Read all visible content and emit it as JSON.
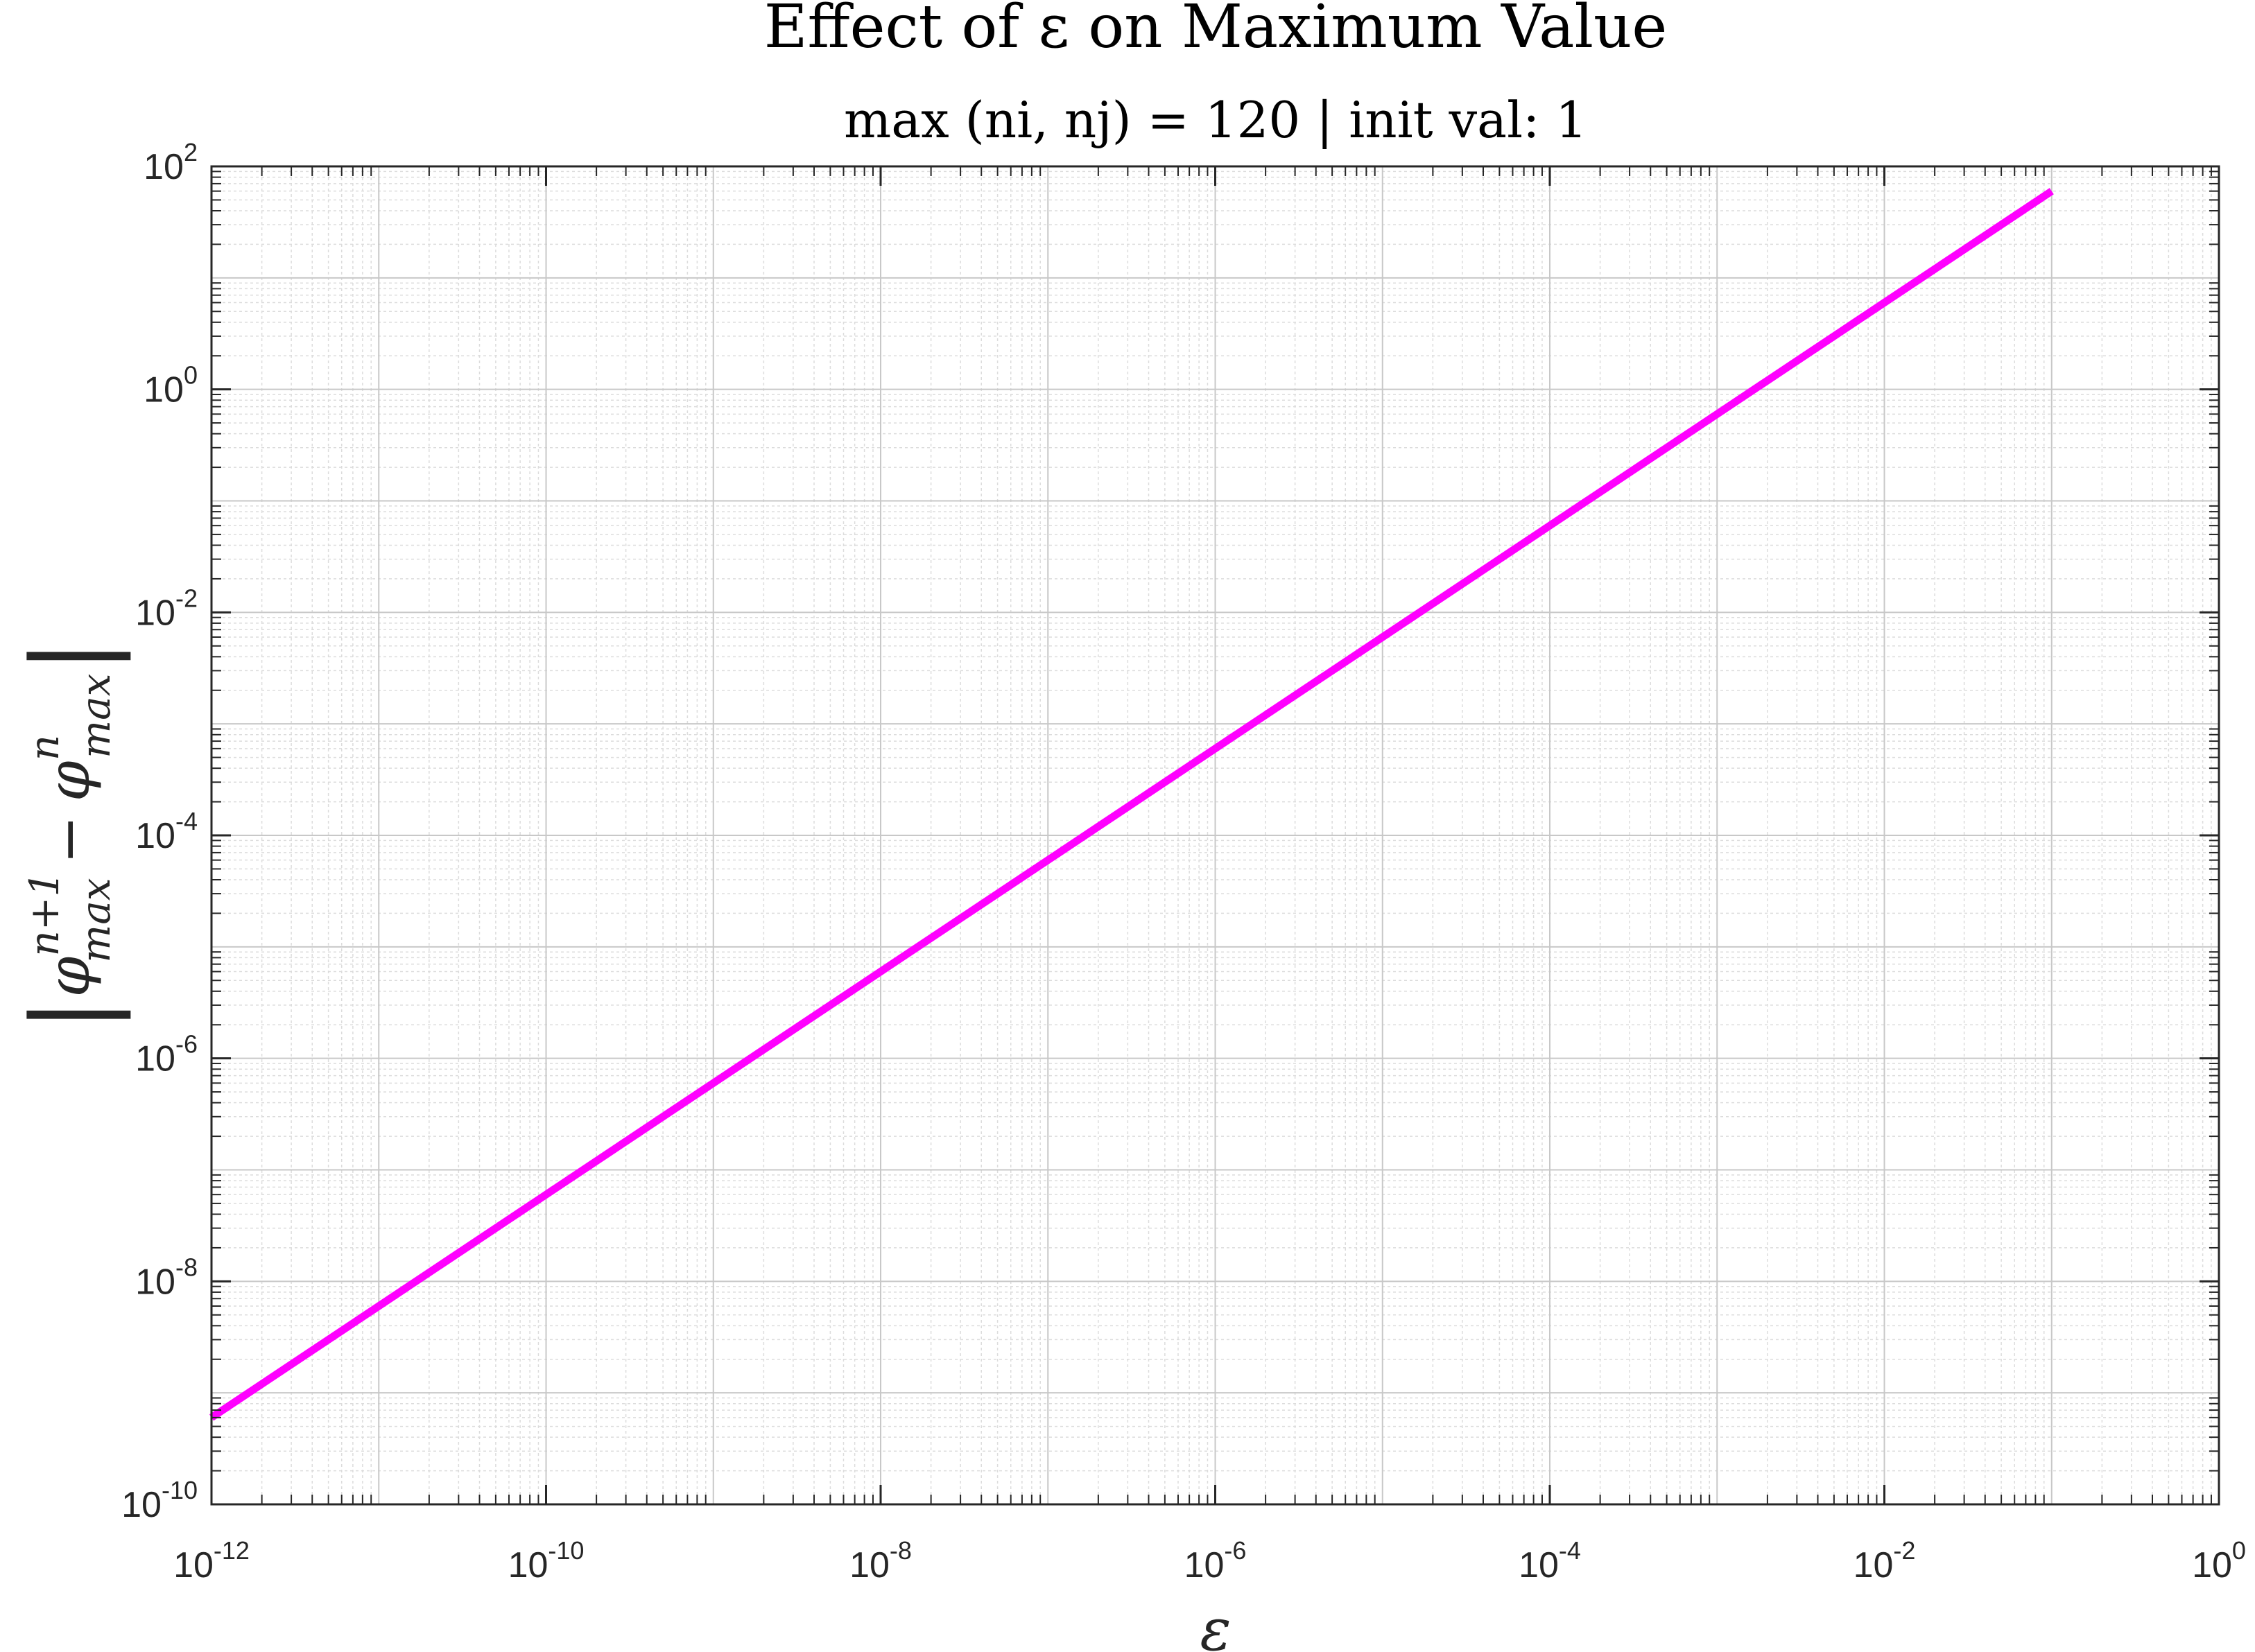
{
  "chart_data": {
    "type": "line",
    "title": "Effect of ε on Maximum Value",
    "subtitle": "max (ni, nj) = 120 | init val: 1",
    "xlabel": "ε",
    "ylabel": "|φ_max^{n+1} − φ_max^{n}|",
    "x_scale": "log",
    "y_scale": "log",
    "xlim": [
      1e-12,
      1
    ],
    "ylim": [
      1e-10,
      100
    ],
    "x_ticks": [
      1e-12,
      1e-10,
      1e-08,
      1e-06,
      0.0001,
      0.01,
      1
    ],
    "y_ticks": [
      1e-10,
      1e-08,
      1e-06,
      0.0001,
      0.01,
      1,
      100
    ],
    "x_tick_labels": [
      {
        "base": "10",
        "exp": "-12"
      },
      {
        "base": "10",
        "exp": "-10"
      },
      {
        "base": "10",
        "exp": "-8"
      },
      {
        "base": "10",
        "exp": "-6"
      },
      {
        "base": "10",
        "exp": "-4"
      },
      {
        "base": "10",
        "exp": "-2"
      },
      {
        "base": "10",
        "exp": "0"
      }
    ],
    "y_tick_labels": [
      {
        "base": "10",
        "exp": "-10"
      },
      {
        "base": "10",
        "exp": "-8"
      },
      {
        "base": "10",
        "exp": "-6"
      },
      {
        "base": "10",
        "exp": "-4"
      },
      {
        "base": "10",
        "exp": "-2"
      },
      {
        "base": "10",
        "exp": "0"
      },
      {
        "base": "10",
        "exp": "2"
      }
    ],
    "grid": true,
    "minor_grid": true,
    "series": [
      {
        "color": "#ff00ff",
        "x": [
          1e-12,
          1e-11,
          1e-10,
          1e-09,
          1e-08,
          1e-07,
          1e-06,
          1e-05,
          0.0001,
          0.001,
          0.01,
          0.1
        ],
        "y": [
          6e-10,
          6e-09,
          6e-08,
          6e-07,
          6e-06,
          6e-05,
          0.0006,
          0.006,
          0.06,
          0.6,
          6,
          60
        ]
      }
    ]
  }
}
